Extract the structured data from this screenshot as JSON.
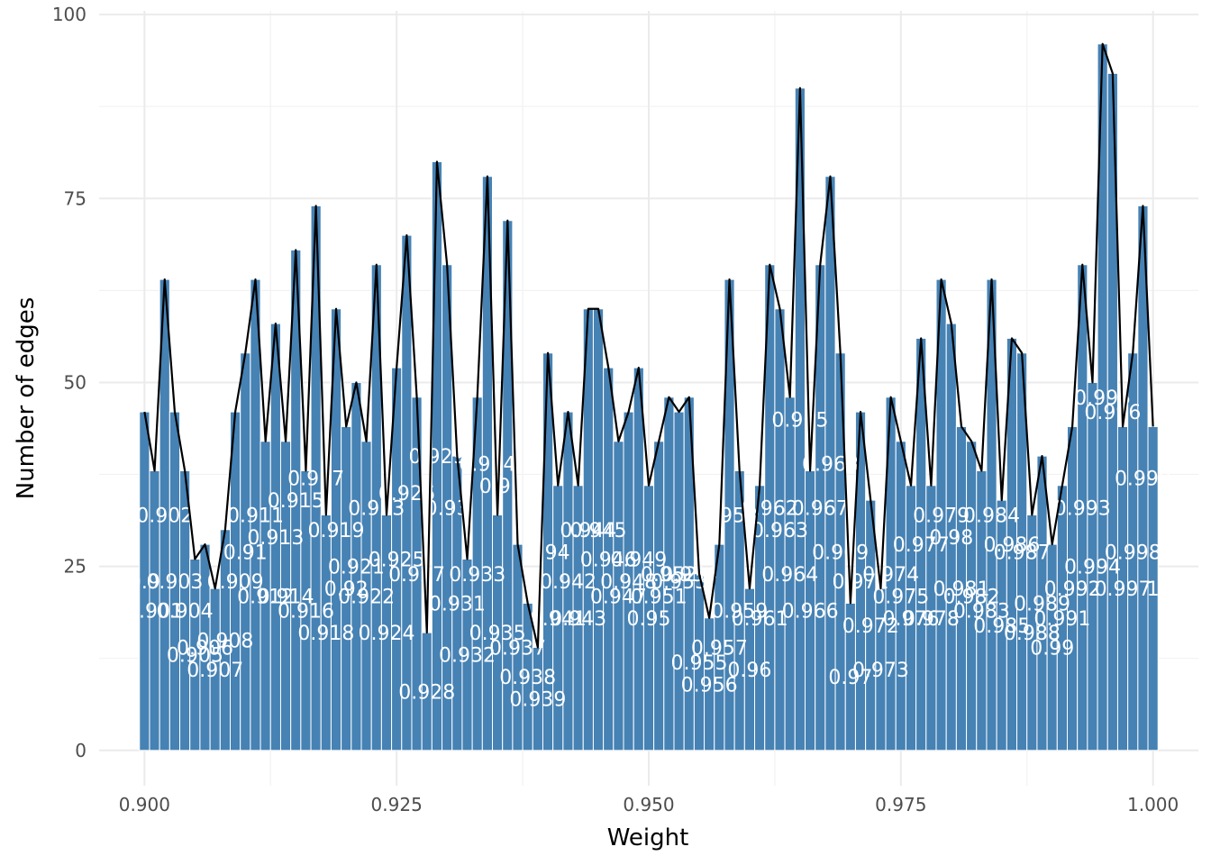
{
  "chart_data": {
    "type": "bar",
    "xlabel": "Weight",
    "ylabel": "Number of edges",
    "xlim": [
      0.8955,
      1.0045
    ],
    "ylim": [
      -4.8,
      100.5
    ],
    "xticks": [
      "0.900",
      "0.925",
      "0.950",
      "0.975",
      "1.000"
    ],
    "yticks": [
      "0",
      "25",
      "50",
      "75",
      "100"
    ],
    "grid": true,
    "legend": "none",
    "overlay": "line",
    "colors": {
      "bar": "#4682b4",
      "line": "#000000",
      "label": "#ffffff",
      "grid": "#ebebeb"
    },
    "x": [
      0.9,
      0.901,
      0.902,
      0.903,
      0.904,
      0.905,
      0.906,
      0.907,
      0.908,
      0.909,
      0.91,
      0.911,
      0.912,
      0.913,
      0.914,
      0.915,
      0.916,
      0.917,
      0.918,
      0.919,
      0.92,
      0.921,
      0.922,
      0.923,
      0.924,
      0.925,
      0.926,
      0.927,
      0.928,
      0.929,
      0.93,
      0.931,
      0.932,
      0.933,
      0.934,
      0.935,
      0.936,
      0.937,
      0.938,
      0.939,
      0.94,
      0.941,
      0.942,
      0.943,
      0.944,
      0.945,
      0.946,
      0.947,
      0.948,
      0.949,
      0.95,
      0.951,
      0.952,
      0.953,
      0.954,
      0.955,
      0.956,
      0.957,
      0.958,
      0.959,
      0.96,
      0.961,
      0.962,
      0.963,
      0.964,
      0.965,
      0.966,
      0.967,
      0.968,
      0.969,
      0.97,
      0.971,
      0.972,
      0.973,
      0.974,
      0.975,
      0.976,
      0.977,
      0.978,
      0.979,
      0.98,
      0.981,
      0.982,
      0.983,
      0.984,
      0.985,
      0.986,
      0.987,
      0.988,
      0.989,
      0.99,
      0.991,
      0.992,
      0.993,
      0.994,
      0.995,
      0.996,
      0.997,
      0.998,
      0.999,
      1.0
    ],
    "values": [
      46,
      38,
      64,
      46,
      38,
      26,
      28,
      22,
      30,
      46,
      54,
      64,
      42,
      58,
      42,
      68,
      38,
      74,
      32,
      60,
      44,
      50,
      42,
      66,
      32,
      52,
      70,
      48,
      16,
      80,
      66,
      40,
      26,
      48,
      78,
      32,
      72,
      28,
      20,
      14,
      54,
      36,
      46,
      36,
      60,
      60,
      52,
      42,
      46,
      52,
      36,
      42,
      48,
      46,
      48,
      24,
      18,
      28,
      64,
      38,
      22,
      36,
      66,
      60,
      48,
      90,
      38,
      66,
      78,
      54,
      20,
      46,
      34,
      22,
      48,
      42,
      36,
      56,
      36,
      64,
      58,
      44,
      42,
      38,
      64,
      34,
      56,
      54,
      32,
      40,
      28,
      36,
      44,
      66,
      50,
      96,
      92,
      44,
      54,
      74,
      44
    ],
    "labels": [
      "0.9",
      "0.901",
      "0.902",
      "0.903",
      "0.904",
      "0.905",
      "0.906",
      "0.907",
      "0.908",
      "0.909",
      "0.91",
      "0.911",
      "0.912",
      "0.913",
      "0.914",
      "0.915",
      "0.916",
      "0.917",
      "0.918",
      "0.919",
      "0.92",
      "0.921",
      "0.922",
      "0.923",
      "0.924",
      "0.925",
      "0.926",
      "0.927",
      "0.928",
      "0.929",
      "0.93",
      "0.931",
      "0.932",
      "0.933",
      "0.934",
      "0.935",
      "0.936",
      "0.937",
      "0.938",
      "0.939",
      "0.94",
      "0.941",
      "0.942",
      "0.943",
      "0.944",
      "0.945",
      "0.946",
      "0.947",
      "0.948",
      "0.949",
      "0.95",
      "0.951",
      "0.952",
      "0.953",
      "0.954",
      "0.955",
      "0.956",
      "0.957",
      "0.958",
      "0.959",
      "0.96",
      "0.961",
      "0.962",
      "0.963",
      "0.964",
      "0.965",
      "0.966",
      "0.967",
      "0.968",
      "0.969",
      "0.97",
      "0.971",
      "0.972",
      "0.973",
      "0.974",
      "0.975",
      "0.976",
      "0.977",
      "0.978",
      "0.979",
      "0.98",
      "0.981",
      "0.982",
      "0.983",
      "0.984",
      "0.985",
      "0.986",
      "0.987",
      "0.988",
      "0.989",
      "0.99",
      "0.991",
      "0.992",
      "0.993",
      "0.994",
      "0.995",
      "0.996",
      "0.997",
      "0.998",
      "0.999",
      "1"
    ]
  }
}
